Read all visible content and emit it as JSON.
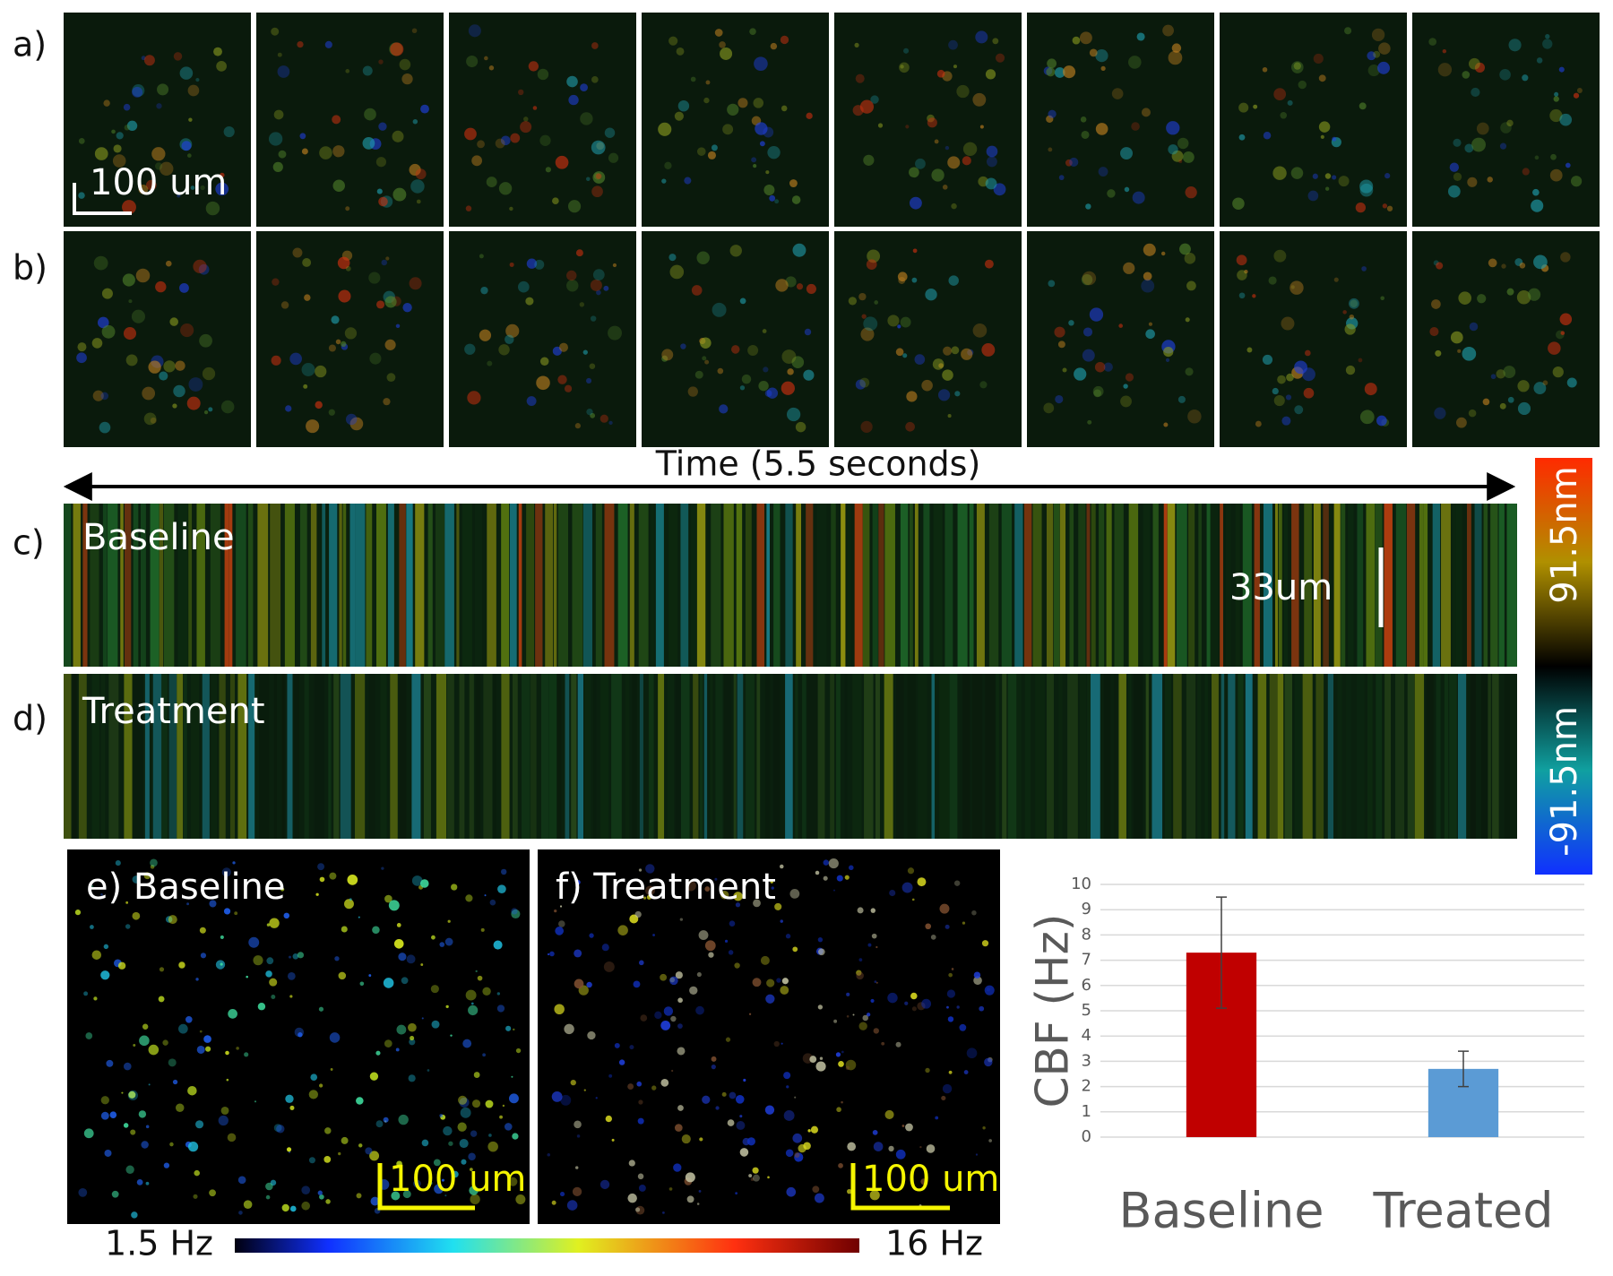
{
  "labels": {
    "a": "a)",
    "b": "b)",
    "c": "c)",
    "d": "d)",
    "scale_a": "100 um",
    "time": "Time (5.5 seconds)",
    "baseline_c": "Baseline",
    "treatment_d": "Treatment",
    "scale_c": "33um",
    "cbar_max": "91.5nm",
    "cbar_min": "-91.5nm",
    "e": "e) Baseline",
    "f": "f) Treatment",
    "scale_e": "100 um",
    "scale_f": "100 um",
    "hz_min": "1.5 Hz",
    "hz_max": "16 Hz"
  },
  "chart_data": {
    "type": "bar",
    "y_label": "CBF (Hz)",
    "categories": [
      "Baseline",
      "Treated"
    ],
    "values": [
      7.3,
      2.7
    ],
    "errors": [
      2.2,
      0.7
    ],
    "colors": [
      "#c00000",
      "#5b9bd5"
    ],
    "ylim": [
      0,
      10
    ],
    "yticks": [
      0,
      1,
      2,
      3,
      4,
      5,
      6,
      7,
      8,
      9,
      10
    ],
    "grid": true
  }
}
